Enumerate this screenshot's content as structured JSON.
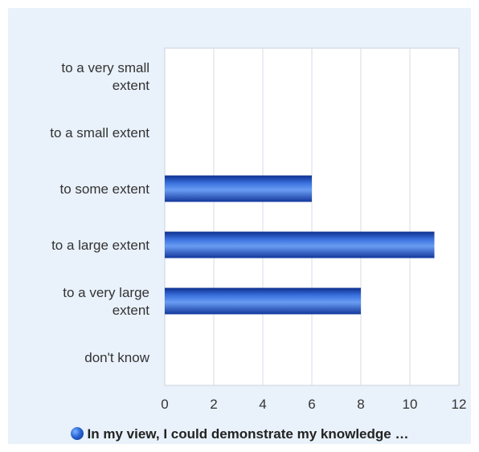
{
  "chart_data": {
    "type": "bar",
    "orientation": "horizontal",
    "categories": [
      "to a very small extent",
      "to a small extent",
      "to some extent",
      "to a large extent",
      "to a very large extent",
      "don't know"
    ],
    "category_lines": [
      [
        "to a very small",
        "extent"
      ],
      [
        "to a small extent"
      ],
      [
        "to some extent"
      ],
      [
        "to a large extent"
      ],
      [
        "to a very large",
        "extent"
      ],
      [
        "don't know"
      ]
    ],
    "series": [
      {
        "name": "In my view, I could demonstrate my knowledge …",
        "values": [
          0,
          0,
          6,
          11,
          8,
          0
        ],
        "color": "#1f4fc0"
      }
    ],
    "xlim": [
      0,
      12
    ],
    "xticks": [
      0,
      2,
      4,
      6,
      8,
      10,
      12
    ],
    "grid": true,
    "legend_position": "bottom",
    "title": "",
    "xlabel": "",
    "ylabel": ""
  }
}
